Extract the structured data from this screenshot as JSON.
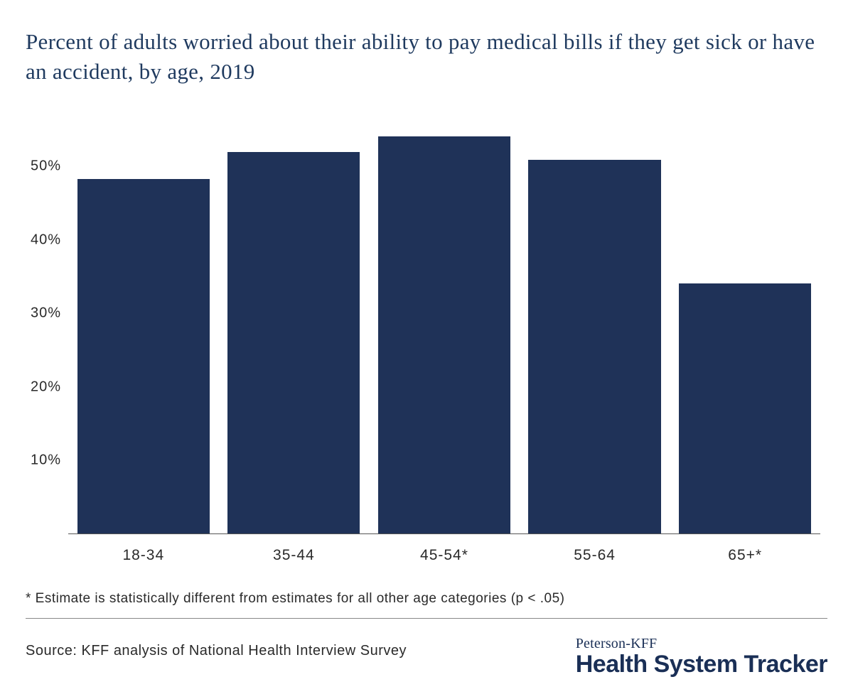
{
  "title": "Percent of adults worried about their ability to pay medical bills if they get sick or have an accident, by age, 2019",
  "chart": {
    "type": "bar",
    "categories": [
      "18-34",
      "35-44",
      "45-54*",
      "55-64",
      "65+*"
    ],
    "values": [
      48.3,
      51.9,
      54.1,
      50.9,
      34.0
    ],
    "bar_color": "#1f3258",
    "background_color": "#ffffff",
    "ylim_max": 57,
    "yticks": [
      10,
      20,
      30,
      40,
      50
    ],
    "ytick_suffix": "%",
    "axis_color": "#555555",
    "label_color": "#2a2a2a",
    "label_fontsize": 20,
    "title_color": "#1f3a5f",
    "title_fontsize": 31,
    "bar_width_ratio": 0.88
  },
  "footnote": "* Estimate is statistically different from estimates for all other age categories (p < .05)",
  "source": "Source: KFF analysis of National Health Interview Survey",
  "logo": {
    "top": "Peterson-KFF",
    "bottom": "Health System Tracker",
    "color": "#1a2f56"
  }
}
